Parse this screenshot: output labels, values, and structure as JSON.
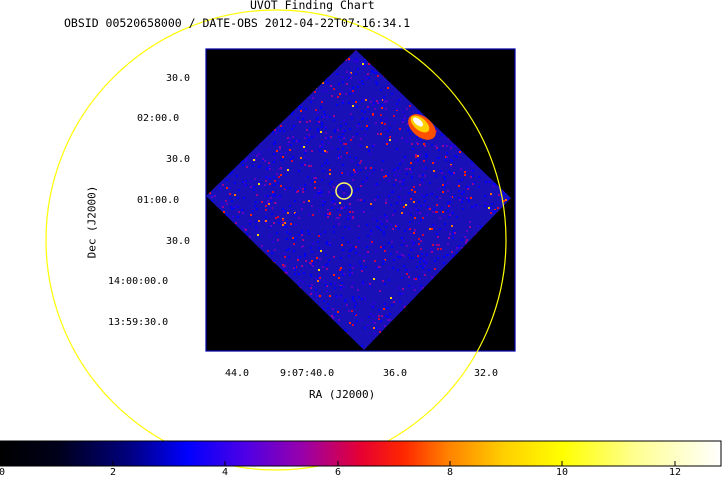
{
  "header": {
    "title": "UVOT Finding Chart",
    "subtitle": "OBSID 00520658000 / DATE-OBS 2012-04-22T07:16:34.1"
  },
  "axes": {
    "xlabel": "RA (J2000)",
    "ylabel": "Dec (J2000)",
    "x_ticks": [
      "44.0",
      "9:07:40.0",
      "36.0",
      "32.0"
    ],
    "y_ticks": [
      "30.0",
      "02:00.0",
      "30.0",
      "01:00.0",
      "30.0",
      "14:00:00.0",
      "13:59:30.0"
    ]
  },
  "colorbar": {
    "ticks": [
      "0",
      "2",
      "4",
      "6",
      "8",
      "10",
      "12"
    ],
    "range": [
      0,
      12.8
    ],
    "colors": [
      "#000000",
      "#0000ff",
      "#ff0000",
      "#ffff00",
      "#ffffff"
    ]
  },
  "overlay": {
    "large_circle_color": "#ffff00",
    "source_circle_color": "#ffff66",
    "frame_color": "#0000aa"
  }
}
